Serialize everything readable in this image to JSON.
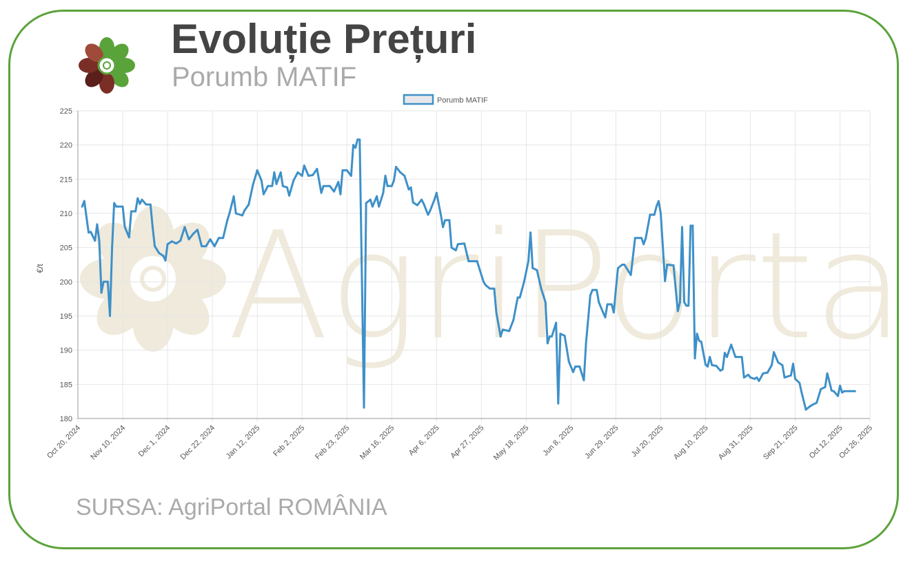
{
  "header": {
    "title": "Evoluție Prețuri",
    "subtitle": "Porumb MATIF"
  },
  "footer": {
    "source": "SURSA: AgriPortal ROMÂNIA"
  },
  "watermark": {
    "text": "AgriPortal"
  },
  "colors": {
    "line": "#3e90c8",
    "frame": "#5aa33a",
    "watermark": "#efeadb",
    "logo_green": "#5aa33a",
    "logo_brown": "#7a2e25"
  },
  "chart_data": {
    "type": "line",
    "title": "",
    "xlabel": "",
    "ylabel": "€/t",
    "ylim": [
      180,
      225
    ],
    "xlim": [
      "2024-10-20",
      "2025-10-26"
    ],
    "yticks": [
      180,
      185,
      190,
      195,
      200,
      205,
      210,
      215,
      220,
      225
    ],
    "xtick_dates": [
      "2024-10-20",
      "2024-11-10",
      "2024-12-01",
      "2024-12-22",
      "2025-01-12",
      "2025-02-02",
      "2025-02-23",
      "2025-03-16",
      "2025-04-06",
      "2025-04-27",
      "2025-05-18",
      "2025-06-08",
      "2025-06-29",
      "2025-07-20",
      "2025-08-10",
      "2025-08-31",
      "2025-09-21",
      "2025-10-12",
      "2025-10-26"
    ],
    "xtick_labels": [
      "Oct 20, 2024",
      "Nov 10, 2024",
      "Dec 1, 2024",
      "Dec 22, 2024",
      "Jan 12, 2025",
      "Feb 2, 2025",
      "Feb 23, 2025",
      "Mar 16, 2025",
      "Apr 6, 2025",
      "Apr 27, 2025",
      "May 18, 2025",
      "Jun 8, 2025",
      "Jun 29, 2025",
      "Jul 20, 2025",
      "Aug 10, 2025",
      "Aug 31, 2025",
      "Sep 21, 2025",
      "Oct 12, 2025",
      "Oct 26, 2025"
    ],
    "grid": true,
    "legend_position": "top-center",
    "series": [
      {
        "name": "Porumb MATIF",
        "points": [
          [
            "2024-10-22",
            211.0
          ],
          [
            "2024-10-23",
            211.8
          ],
          [
            "2024-10-25",
            207.2
          ],
          [
            "2024-10-26",
            207.3
          ],
          [
            "2024-10-28",
            206.0
          ],
          [
            "2024-10-29",
            208.4
          ],
          [
            "2024-10-30",
            206.0
          ],
          [
            "2024-10-31",
            198.4
          ],
          [
            "2024-11-01",
            200.0
          ],
          [
            "2024-11-03",
            200.0
          ],
          [
            "2024-11-04",
            195.0
          ],
          [
            "2024-11-05",
            205.0
          ],
          [
            "2024-11-06",
            211.5
          ],
          [
            "2024-11-07",
            211.0
          ],
          [
            "2024-11-10",
            211.0
          ],
          [
            "2024-11-11",
            208.0
          ],
          [
            "2024-11-13",
            206.5
          ],
          [
            "2024-11-14",
            210.3
          ],
          [
            "2024-11-16",
            210.3
          ],
          [
            "2024-11-17",
            212.2
          ],
          [
            "2024-11-18",
            211.4
          ],
          [
            "2024-11-19",
            212.0
          ],
          [
            "2024-11-21",
            211.3
          ],
          [
            "2024-11-23",
            211.3
          ],
          [
            "2024-11-24",
            208.0
          ],
          [
            "2024-11-25",
            205.2
          ],
          [
            "2024-11-27",
            204.2
          ],
          [
            "2024-11-29",
            203.8
          ],
          [
            "2024-11-30",
            203.1
          ],
          [
            "2024-12-01",
            205.5
          ],
          [
            "2024-12-03",
            205.9
          ],
          [
            "2024-12-05",
            205.6
          ],
          [
            "2024-12-07",
            206.0
          ],
          [
            "2024-12-09",
            208.0
          ],
          [
            "2024-12-11",
            206.2
          ],
          [
            "2024-12-13",
            207.0
          ],
          [
            "2024-12-15",
            207.6
          ],
          [
            "2024-12-17",
            205.2
          ],
          [
            "2024-12-19",
            205.2
          ],
          [
            "2024-12-21",
            206.2
          ],
          [
            "2024-12-23",
            205.2
          ],
          [
            "2024-12-25",
            206.4
          ],
          [
            "2024-12-27",
            206.4
          ],
          [
            "2024-12-29",
            209.0
          ],
          [
            "2024-12-30",
            210.0
          ],
          [
            "2025-01-01",
            212.5
          ],
          [
            "2025-01-02",
            210.0
          ],
          [
            "2025-01-05",
            209.7
          ],
          [
            "2025-01-06",
            210.4
          ],
          [
            "2025-01-08",
            211.3
          ],
          [
            "2025-01-10",
            214.2
          ],
          [
            "2025-01-12",
            216.3
          ],
          [
            "2025-01-14",
            214.8
          ],
          [
            "2025-01-15",
            212.8
          ],
          [
            "2025-01-17",
            214.0
          ],
          [
            "2025-01-19",
            214.0
          ],
          [
            "2025-01-20",
            216.0
          ],
          [
            "2025-01-21",
            214.3
          ],
          [
            "2025-01-23",
            216.0
          ],
          [
            "2025-01-24",
            214.0
          ],
          [
            "2025-01-26",
            213.8
          ],
          [
            "2025-01-27",
            212.6
          ],
          [
            "2025-01-29",
            214.8
          ],
          [
            "2025-01-31",
            216.0
          ],
          [
            "2025-02-02",
            215.5
          ],
          [
            "2025-02-03",
            217.0
          ],
          [
            "2025-02-05",
            215.5
          ],
          [
            "2025-02-07",
            215.6
          ],
          [
            "2025-02-09",
            216.5
          ],
          [
            "2025-02-11",
            213.0
          ],
          [
            "2025-02-12",
            214.0
          ],
          [
            "2025-02-15",
            214.0
          ],
          [
            "2025-02-17",
            213.2
          ],
          [
            "2025-02-19",
            214.6
          ],
          [
            "2025-02-20",
            212.8
          ],
          [
            "2025-02-21",
            216.3
          ],
          [
            "2025-02-23",
            216.3
          ],
          [
            "2025-02-25",
            215.5
          ],
          [
            "2025-02-26",
            220.0
          ],
          [
            "2025-02-27",
            219.6
          ],
          [
            "2025-02-28",
            220.8
          ],
          [
            "2025-03-01",
            220.8
          ],
          [
            "2025-03-03",
            181.6
          ],
          [
            "2025-03-04",
            211.5
          ],
          [
            "2025-03-06",
            212.0
          ],
          [
            "2025-03-07",
            211.0
          ],
          [
            "2025-03-09",
            212.5
          ],
          [
            "2025-03-10",
            211.0
          ],
          [
            "2025-03-12",
            213.0
          ],
          [
            "2025-03-13",
            215.5
          ],
          [
            "2025-03-14",
            214.0
          ],
          [
            "2025-03-16",
            214.0
          ],
          [
            "2025-03-17",
            214.8
          ],
          [
            "2025-03-18",
            216.8
          ],
          [
            "2025-03-20",
            216.0
          ],
          [
            "2025-03-22",
            215.5
          ],
          [
            "2025-03-24",
            213.5
          ],
          [
            "2025-03-25",
            213.8
          ],
          [
            "2025-03-26",
            211.6
          ],
          [
            "2025-03-28",
            211.2
          ],
          [
            "2025-03-30",
            212.0
          ],
          [
            "2025-03-31",
            211.4
          ],
          [
            "2025-04-02",
            209.8
          ],
          [
            "2025-04-03",
            210.4
          ],
          [
            "2025-04-05",
            212.0
          ],
          [
            "2025-04-06",
            213.0
          ],
          [
            "2025-04-08",
            209.8
          ],
          [
            "2025-04-09",
            208.0
          ],
          [
            "2025-04-10",
            209.0
          ],
          [
            "2025-04-12",
            209.0
          ],
          [
            "2025-04-13",
            205.0
          ],
          [
            "2025-04-15",
            204.6
          ],
          [
            "2025-04-16",
            205.5
          ],
          [
            "2025-04-19",
            205.6
          ],
          [
            "2025-04-21",
            203.0
          ],
          [
            "2025-04-25",
            203.0
          ],
          [
            "2025-04-28",
            200.0
          ],
          [
            "2025-04-29",
            199.5
          ],
          [
            "2025-05-01",
            199.0
          ],
          [
            "2025-05-03",
            199.0
          ],
          [
            "2025-05-04",
            195.5
          ],
          [
            "2025-05-06",
            192.0
          ],
          [
            "2025-05-07",
            193.0
          ],
          [
            "2025-05-10",
            192.8
          ],
          [
            "2025-05-12",
            194.4
          ],
          [
            "2025-05-14",
            197.7
          ],
          [
            "2025-05-15",
            197.7
          ],
          [
            "2025-05-17",
            200.0
          ],
          [
            "2025-05-19",
            203.0
          ],
          [
            "2025-05-20",
            207.2
          ],
          [
            "2025-05-21",
            202.0
          ],
          [
            "2025-05-23",
            201.7
          ],
          [
            "2025-05-25",
            199.0
          ],
          [
            "2025-05-27",
            197.0
          ],
          [
            "2025-05-28",
            191.0
          ],
          [
            "2025-05-29",
            192.0
          ],
          [
            "2025-05-30",
            192.0
          ],
          [
            "2025-06-01",
            194.0
          ],
          [
            "2025-06-02",
            182.2
          ],
          [
            "2025-06-03",
            192.4
          ],
          [
            "2025-06-05",
            192.1
          ],
          [
            "2025-06-07",
            188.3
          ],
          [
            "2025-06-09",
            186.8
          ],
          [
            "2025-06-10",
            187.6
          ],
          [
            "2025-06-12",
            187.6
          ],
          [
            "2025-06-14",
            185.6
          ],
          [
            "2025-06-15",
            191.0
          ],
          [
            "2025-06-17",
            198.0
          ],
          [
            "2025-06-18",
            198.8
          ],
          [
            "2025-06-20",
            198.8
          ],
          [
            "2025-06-21",
            197.0
          ],
          [
            "2025-06-23",
            195.5
          ],
          [
            "2025-06-24",
            194.8
          ],
          [
            "2025-06-25",
            196.7
          ],
          [
            "2025-06-27",
            196.7
          ],
          [
            "2025-06-28",
            195.5
          ],
          [
            "2025-06-29",
            199.0
          ],
          [
            "2025-06-30",
            202.0
          ],
          [
            "2025-07-02",
            202.5
          ],
          [
            "2025-07-03",
            202.5
          ],
          [
            "2025-07-05",
            201.5
          ],
          [
            "2025-07-06",
            201.0
          ],
          [
            "2025-07-08",
            206.4
          ],
          [
            "2025-07-11",
            206.4
          ],
          [
            "2025-07-12",
            205.5
          ],
          [
            "2025-07-13",
            206.4
          ],
          [
            "2025-07-15",
            209.8
          ],
          [
            "2025-07-17",
            209.8
          ],
          [
            "2025-07-18",
            211.0
          ],
          [
            "2025-07-19",
            211.8
          ],
          [
            "2025-07-20",
            210.0
          ],
          [
            "2025-07-22",
            200.1
          ],
          [
            "2025-07-23",
            202.5
          ],
          [
            "2025-07-26",
            202.4
          ],
          [
            "2025-07-27",
            199.0
          ],
          [
            "2025-07-28",
            195.7
          ],
          [
            "2025-07-29",
            197.0
          ],
          [
            "2025-07-30",
            208.0
          ],
          [
            "2025-07-31",
            197.0
          ],
          [
            "2025-08-01",
            196.5
          ],
          [
            "2025-08-02",
            196.5
          ],
          [
            "2025-08-03",
            208.2
          ],
          [
            "2025-08-04",
            208.2
          ],
          [
            "2025-08-05",
            188.8
          ],
          [
            "2025-08-06",
            192.4
          ],
          [
            "2025-08-07",
            191.4
          ],
          [
            "2025-08-08",
            191.2
          ],
          [
            "2025-08-10",
            187.9
          ],
          [
            "2025-08-11",
            187.6
          ],
          [
            "2025-08-12",
            189.0
          ],
          [
            "2025-08-13",
            187.8
          ],
          [
            "2025-08-15",
            187.7
          ],
          [
            "2025-08-17",
            187.0
          ],
          [
            "2025-08-18",
            187.2
          ],
          [
            "2025-08-19",
            189.6
          ],
          [
            "2025-08-20",
            189.0
          ],
          [
            "2025-08-22",
            190.8
          ],
          [
            "2025-08-24",
            189.0
          ],
          [
            "2025-08-27",
            189.0
          ],
          [
            "2025-08-28",
            186.0
          ],
          [
            "2025-08-30",
            186.4
          ],
          [
            "2025-08-31",
            186.0
          ],
          [
            "2025-09-02",
            185.8
          ],
          [
            "2025-09-03",
            186.0
          ],
          [
            "2025-09-04",
            185.5
          ],
          [
            "2025-09-06",
            186.6
          ],
          [
            "2025-09-08",
            186.7
          ],
          [
            "2025-09-10",
            187.8
          ],
          [
            "2025-09-11",
            189.7
          ],
          [
            "2025-09-13",
            188.2
          ],
          [
            "2025-09-15",
            187.8
          ],
          [
            "2025-09-16",
            186.0
          ],
          [
            "2025-09-19",
            186.3
          ],
          [
            "2025-09-20",
            188.0
          ],
          [
            "2025-09-21",
            185.8
          ],
          [
            "2025-09-23",
            185.2
          ],
          [
            "2025-09-24",
            183.8
          ],
          [
            "2025-09-26",
            181.3
          ],
          [
            "2025-09-28",
            181.8
          ],
          [
            "2025-09-29",
            182.0
          ],
          [
            "2025-10-01",
            182.3
          ],
          [
            "2025-10-03",
            184.3
          ],
          [
            "2025-10-05",
            184.6
          ],
          [
            "2025-10-06",
            186.6
          ],
          [
            "2025-10-08",
            184.1
          ],
          [
            "2025-10-09",
            184.0
          ],
          [
            "2025-10-11",
            183.3
          ],
          [
            "2025-10-12",
            184.8
          ],
          [
            "2025-10-13",
            183.8
          ],
          [
            "2025-10-14",
            184.0
          ],
          [
            "2025-10-19",
            184.0
          ]
        ]
      }
    ]
  }
}
